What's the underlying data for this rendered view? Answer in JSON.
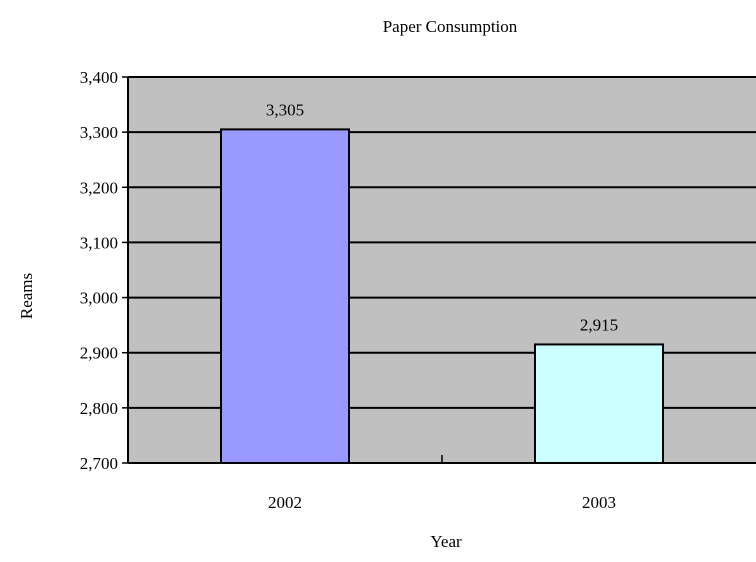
{
  "chart_data": {
    "type": "bar",
    "title": "Paper Consumption",
    "xlabel": "Year",
    "ylabel": "Reams",
    "categories": [
      "2002",
      "2003"
    ],
    "values": [
      3305,
      2915
    ],
    "data_labels": [
      "3,305",
      "2,915"
    ],
    "ylim": [
      2700,
      3400
    ],
    "yticks": [
      2700,
      2800,
      2900,
      3000,
      3100,
      3200,
      3300,
      3400
    ],
    "ytick_labels": [
      "2,700",
      "2,800",
      "2,900",
      "3,000",
      "3,100",
      "3,200",
      "3,300",
      "3,400"
    ],
    "grid": true,
    "legend": "none",
    "colors": {
      "plot_background": "#c0c0c0",
      "bar_2002": "#9999ff",
      "bar_2003": "#ccffff",
      "gridline": "#000000",
      "bar_outline": "#000000"
    }
  }
}
